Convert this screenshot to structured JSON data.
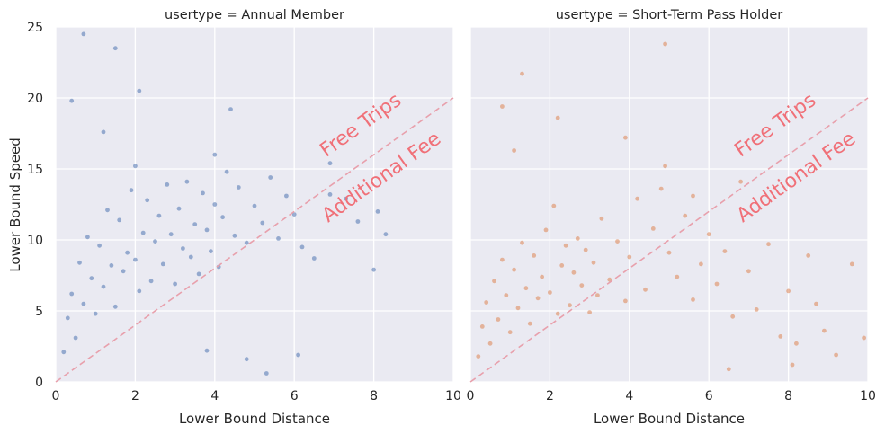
{
  "chart_data": {
    "type": "scatter",
    "xlim": [
      0,
      10
    ],
    "ylim": [
      0,
      25
    ],
    "xticks": [
      "0",
      "2",
      "4",
      "6",
      "8",
      "10"
    ],
    "yticks": [
      "0",
      "5",
      "10",
      "15",
      "20",
      "25"
    ],
    "xlabel": "Lower Bound Distance",
    "ylabel": "Lower Bound Speed",
    "grid": true,
    "reference_line": {
      "from": [
        0,
        0
      ],
      "to": [
        10,
        20
      ],
      "style": "dashed",
      "color": "#e8a0ac"
    },
    "annotations": {
      "above": "Free Trips",
      "below": "Additional Fee",
      "color": "#f07078"
    },
    "panels": [
      {
        "title": "usertype = Annual Member",
        "color": "#4c72b0",
        "points": [
          [
            0.2,
            2.1
          ],
          [
            0.3,
            4.5
          ],
          [
            0.4,
            6.2
          ],
          [
            0.5,
            3.1
          ],
          [
            0.6,
            8.4
          ],
          [
            0.7,
            5.5
          ],
          [
            0.8,
            10.2
          ],
          [
            0.9,
            7.3
          ],
          [
            1.0,
            4.8
          ],
          [
            1.1,
            9.6
          ],
          [
            1.2,
            6.7
          ],
          [
            1.3,
            12.1
          ],
          [
            1.4,
            8.2
          ],
          [
            1.5,
            5.3
          ],
          [
            1.6,
            11.4
          ],
          [
            1.7,
            7.8
          ],
          [
            1.8,
            9.1
          ],
          [
            1.9,
            13.5
          ],
          [
            2.0,
            8.6
          ],
          [
            2.0,
            15.2
          ],
          [
            2.1,
            6.4
          ],
          [
            2.2,
            10.5
          ],
          [
            2.3,
            12.8
          ],
          [
            2.4,
            7.1
          ],
          [
            2.5,
            9.9
          ],
          [
            2.6,
            11.7
          ],
          [
            2.7,
            8.3
          ],
          [
            2.8,
            13.9
          ],
          [
            2.9,
            10.4
          ],
          [
            3.0,
            6.9
          ],
          [
            3.1,
            12.2
          ],
          [
            3.2,
            9.4
          ],
          [
            3.3,
            14.1
          ],
          [
            3.4,
            8.8
          ],
          [
            3.5,
            11.1
          ],
          [
            3.6,
            7.6
          ],
          [
            3.7,
            13.3
          ],
          [
            3.8,
            10.7
          ],
          [
            3.9,
            9.2
          ],
          [
            4.0,
            16.0
          ],
          [
            4.0,
            12.5
          ],
          [
            4.1,
            8.1
          ],
          [
            4.2,
            11.6
          ],
          [
            4.3,
            14.8
          ],
          [
            4.4,
            19.2
          ],
          [
            4.5,
            10.3
          ],
          [
            4.6,
            13.7
          ],
          [
            4.8,
            9.8
          ],
          [
            5.0,
            12.4
          ],
          [
            5.2,
            11.2
          ],
          [
            5.4,
            14.4
          ],
          [
            5.6,
            10.1
          ],
          [
            5.8,
            13.1
          ],
          [
            6.0,
            11.8
          ],
          [
            6.2,
            9.5
          ],
          [
            6.5,
            8.7
          ],
          [
            6.9,
            15.4
          ],
          [
            6.9,
            13.2
          ],
          [
            7.3,
            12.9
          ],
          [
            7.6,
            11.3
          ],
          [
            8.0,
            7.9
          ],
          [
            8.3,
            10.4
          ],
          [
            8.1,
            12.0
          ],
          [
            1.5,
            23.5
          ],
          [
            0.7,
            24.5
          ],
          [
            2.1,
            20.5
          ],
          [
            0.4,
            19.8
          ],
          [
            1.2,
            17.6
          ],
          [
            3.8,
            2.2
          ],
          [
            4.8,
            1.6
          ],
          [
            5.3,
            0.6
          ],
          [
            6.1,
            1.9
          ]
        ]
      },
      {
        "title": "usertype = Short-Term Pass Holder",
        "color": "#dd8452",
        "points": [
          [
            0.2,
            1.8
          ],
          [
            0.3,
            3.9
          ],
          [
            0.4,
            5.6
          ],
          [
            0.5,
            2.7
          ],
          [
            0.6,
            7.1
          ],
          [
            0.7,
            4.4
          ],
          [
            0.8,
            8.6
          ],
          [
            0.9,
            6.1
          ],
          [
            1.0,
            3.5
          ],
          [
            1.1,
            7.9
          ],
          [
            1.2,
            5.2
          ],
          [
            1.3,
            9.8
          ],
          [
            1.4,
            6.6
          ],
          [
            1.5,
            4.1
          ],
          [
            1.6,
            8.9
          ],
          [
            1.7,
            5.9
          ],
          [
            1.8,
            7.4
          ],
          [
            1.9,
            10.7
          ],
          [
            2.0,
            6.3
          ],
          [
            2.1,
            12.4
          ],
          [
            2.2,
            4.8
          ],
          [
            2.3,
            8.2
          ],
          [
            2.4,
            9.6
          ],
          [
            2.5,
            5.4
          ],
          [
            2.6,
            7.7
          ],
          [
            2.7,
            10.1
          ],
          [
            2.8,
            6.8
          ],
          [
            2.9,
            9.3
          ],
          [
            3.0,
            4.9
          ],
          [
            3.1,
            8.4
          ],
          [
            3.2,
            6.1
          ],
          [
            3.3,
            11.5
          ],
          [
            3.5,
            7.2
          ],
          [
            3.7,
            9.9
          ],
          [
            3.9,
            5.7
          ],
          [
            4.0,
            8.8
          ],
          [
            4.2,
            12.9
          ],
          [
            4.4,
            6.5
          ],
          [
            4.6,
            10.8
          ],
          [
            4.8,
            13.6
          ],
          [
            4.9,
            15.2
          ],
          [
            5.0,
            9.1
          ],
          [
            5.2,
            7.4
          ],
          [
            5.4,
            11.7
          ],
          [
            5.6,
            5.8
          ],
          [
            5.8,
            8.3
          ],
          [
            6.0,
            10.4
          ],
          [
            6.2,
            6.9
          ],
          [
            6.4,
            9.2
          ],
          [
            6.6,
            4.6
          ],
          [
            6.8,
            14.1
          ],
          [
            7.0,
            7.8
          ],
          [
            7.2,
            5.1
          ],
          [
            7.5,
            9.7
          ],
          [
            7.8,
            3.2
          ],
          [
            8.0,
            6.4
          ],
          [
            8.2,
            2.7
          ],
          [
            8.5,
            8.9
          ],
          [
            8.7,
            5.5
          ],
          [
            8.9,
            3.6
          ],
          [
            9.2,
            1.9
          ],
          [
            9.6,
            8.3
          ],
          [
            9.9,
            3.1
          ],
          [
            1.3,
            21.7
          ],
          [
            0.8,
            19.4
          ],
          [
            2.2,
            18.6
          ],
          [
            3.9,
            17.2
          ],
          [
            4.9,
            23.8
          ],
          [
            1.1,
            16.3
          ],
          [
            6.5,
            0.9
          ],
          [
            8.1,
            1.2
          ],
          [
            5.6,
            13.1
          ]
        ]
      }
    ]
  }
}
